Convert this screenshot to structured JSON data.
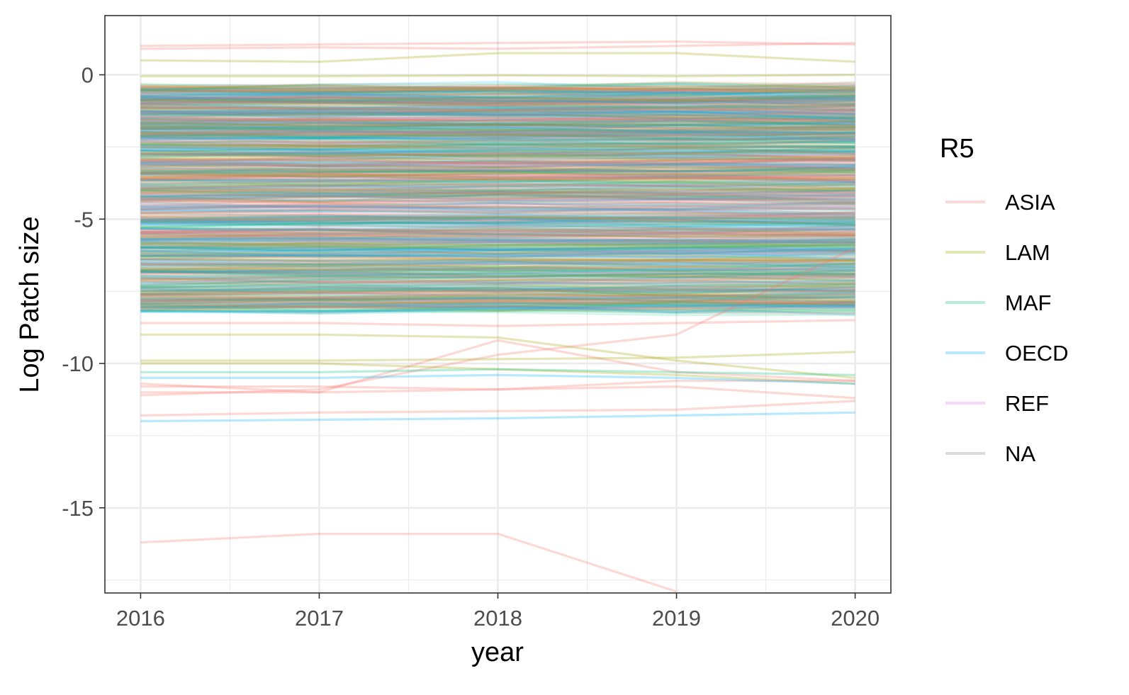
{
  "chart_data": {
    "type": "line",
    "title": "",
    "xlabel": "year",
    "ylabel": "Log Patch size",
    "x": [
      2016,
      2017,
      2018,
      2019,
      2020
    ],
    "xlim": [
      2015.8,
      2020.2
    ],
    "ylim": [
      -17.95,
      2.05
    ],
    "x_ticks": [
      "2016",
      "2017",
      "2018",
      "2019",
      "2020"
    ],
    "y_ticks": [
      {
        "value": 0,
        "label": "0"
      },
      {
        "value": -5,
        "label": "-5"
      },
      {
        "value": -10,
        "label": "-10"
      },
      {
        "value": -15,
        "label": "-15"
      }
    ],
    "grid": true,
    "legend": {
      "title": "R5",
      "placement": "right",
      "entries": [
        {
          "label": "ASIA",
          "color": "#F8766D"
        },
        {
          "label": "LAM",
          "color": "#A3A500"
        },
        {
          "label": "MAF",
          "color": "#00BF7D"
        },
        {
          "label": "OECD",
          "color": "#00B0F6"
        },
        {
          "label": "REF",
          "color": "#E76BF3"
        },
        {
          "label": "NA",
          "color": "#7F7F7F"
        }
      ]
    },
    "series": [
      {
        "group": "ASIA",
        "values": [
          0.9,
          0.95,
          0.9,
          1.0,
          1.1
        ]
      },
      {
        "group": "ASIA",
        "values": [
          1.0,
          1.05,
          1.1,
          1.15,
          1.05
        ]
      },
      {
        "group": "LAM",
        "values": [
          0.5,
          0.45,
          0.75,
          0.75,
          0.45
        ]
      },
      {
        "group": "LAM",
        "values": [
          -0.05,
          -0.05,
          -0.02,
          -0.05,
          0.0
        ]
      },
      {
        "group": "ASIA",
        "values": [
          -10.7,
          -11.0,
          -9.2,
          -10.3,
          -10.6
        ]
      },
      {
        "group": "ASIA",
        "values": [
          -11.1,
          -10.9,
          -9.7,
          -9.0,
          -6.0
        ]
      },
      {
        "group": "LAM",
        "values": [
          -9.0,
          -9.0,
          -9.1,
          -9.9,
          -10.5
        ]
      },
      {
        "group": "LAM",
        "values": [
          -9.9,
          -9.9,
          -9.85,
          -9.8,
          -9.6
        ]
      },
      {
        "group": "LAM",
        "values": [
          -10.0,
          -10.0,
          -10.2,
          -10.4,
          -10.7
        ]
      },
      {
        "group": "ASIA",
        "values": [
          -10.8,
          -10.8,
          -10.9,
          -10.6,
          -10.6
        ]
      },
      {
        "group": "ASIA",
        "values": [
          -11.8,
          -11.7,
          -11.65,
          -11.6,
          -11.3
        ]
      },
      {
        "group": "ASIA",
        "values": [
          -11.0,
          -11.0,
          -10.9,
          -10.8,
          -11.2
        ]
      },
      {
        "group": "OECD",
        "values": [
          -12.0,
          -11.95,
          -11.9,
          -11.8,
          -11.7
        ]
      },
      {
        "group": "OECD",
        "values": [
          -10.5,
          -10.5,
          -10.4,
          -10.5,
          -10.7
        ]
      },
      {
        "group": "MAF",
        "values": [
          -10.3,
          -10.3,
          -10.2,
          -10.3,
          -10.4
        ]
      },
      {
        "group": "ASIA",
        "values": [
          -16.2,
          -15.9,
          -15.9,
          -17.9,
          null
        ]
      },
      {
        "group": "ASIA",
        "values": [
          -8.6,
          -8.6,
          -8.7,
          -8.6,
          -8.5
        ]
      },
      {
        "group": "MAF",
        "values": [
          -7.3,
          -7.1,
          -7.0,
          -6.9,
          -6.9
        ]
      },
      {
        "group": "OECD",
        "values": [
          -8.2,
          -8.2,
          -8.1,
          -8.0,
          -8.0
        ]
      }
    ]
  }
}
